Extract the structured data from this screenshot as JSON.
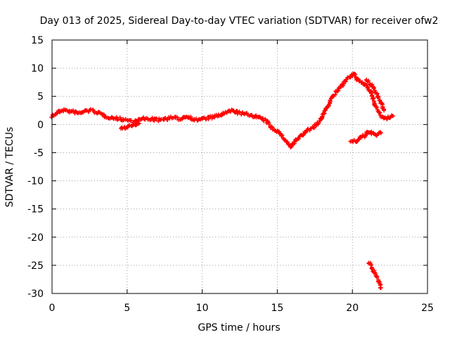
{
  "chart_data": {
    "type": "scatter",
    "title": "Day 013 of 2025, Sidereal Day-to-day VTEC variation (SDTVAR) for receiver ofw2",
    "xlabel": "GPS time / hours",
    "ylabel": "SDTVAR / TECUs",
    "xlim": [
      0,
      25
    ],
    "ylim": [
      -30,
      15
    ],
    "x_ticks": [
      0,
      5,
      10,
      15,
      20,
      25
    ],
    "y_ticks": [
      -30,
      -25,
      -20,
      -15,
      -10,
      -5,
      0,
      5,
      10,
      15
    ],
    "grid": true,
    "marker": "+",
    "series": [
      {
        "name": "ofw2",
        "color": "#ff0000",
        "segments": [
          {
            "x": [
              0.0,
              0.2,
              0.4,
              0.6,
              0.8,
              1.0,
              1.2,
              1.5,
              1.8,
              2.2,
              2.6,
              3.0,
              3.5,
              4.0,
              4.5,
              5.0,
              5.5,
              6.0,
              6.5,
              7.0,
              7.5,
              8.0,
              8.5,
              9.0,
              9.5,
              10.0,
              10.5,
              11.0,
              11.5,
              12.0,
              12.5,
              13.0,
              13.5,
              14.0,
              14.3,
              14.6,
              15.0,
              15.3,
              15.6,
              15.9,
              16.2,
              16.6,
              17.0,
              17.4,
              17.8,
              18.1,
              18.4,
              18.7,
              19.0,
              19.3,
              19.6,
              19.9,
              20.1,
              20.3,
              20.6,
              20.9,
              21.2,
              21.5,
              21.8,
              22.1,
              22.4,
              22.7
            ],
            "y": [
              1.5,
              1.8,
              2.2,
              2.5,
              2.6,
              2.4,
              2.3,
              2.2,
              2.0,
              2.4,
              2.5,
              2.2,
              1.5,
              1.2,
              1.0,
              0.8,
              0.5,
              1.0,
              1.0,
              0.8,
              1.0,
              1.2,
              1.0,
              1.5,
              0.8,
              1.0,
              1.2,
              1.5,
              2.0,
              2.5,
              2.0,
              1.8,
              1.5,
              1.0,
              0.5,
              -0.5,
              -1.2,
              -2.0,
              -3.0,
              -4.0,
              -3.0,
              -2.0,
              -1.0,
              -0.5,
              0.5,
              2.0,
              3.5,
              5.0,
              6.0,
              7.0,
              8.0,
              8.5,
              9.0,
              8.0,
              7.5,
              7.0,
              6.0,
              3.5,
              2.0,
              1.0,
              1.2,
              1.5
            ]
          },
          {
            "x": [
              4.6,
              4.9,
              5.2,
              5.5,
              5.8
            ],
            "y": [
              -0.8,
              -0.5,
              -0.2,
              0.0,
              0.2
            ]
          },
          {
            "x": [
              19.9,
              20.2,
              20.5,
              20.8,
              21.0,
              21.3,
              21.6,
              21.9
            ],
            "y": [
              -3.0,
              -3.0,
              -2.5,
              -2.0,
              -1.3,
              -1.6,
              -1.8,
              -1.5
            ]
          },
          {
            "x": [
              21.1,
              21.3,
              21.5,
              21.7,
              21.9
            ],
            "y": [
              -24.5,
              -25.5,
              -26.5,
              -27.5,
              -29.0
            ]
          },
          {
            "x": [
              20.9,
              21.1,
              21.3,
              21.5,
              21.7,
              21.9,
              22.1
            ],
            "y": [
              8.0,
              7.5,
              7.0,
              6.0,
              5.0,
              4.0,
              2.5
            ]
          }
        ]
      }
    ]
  }
}
